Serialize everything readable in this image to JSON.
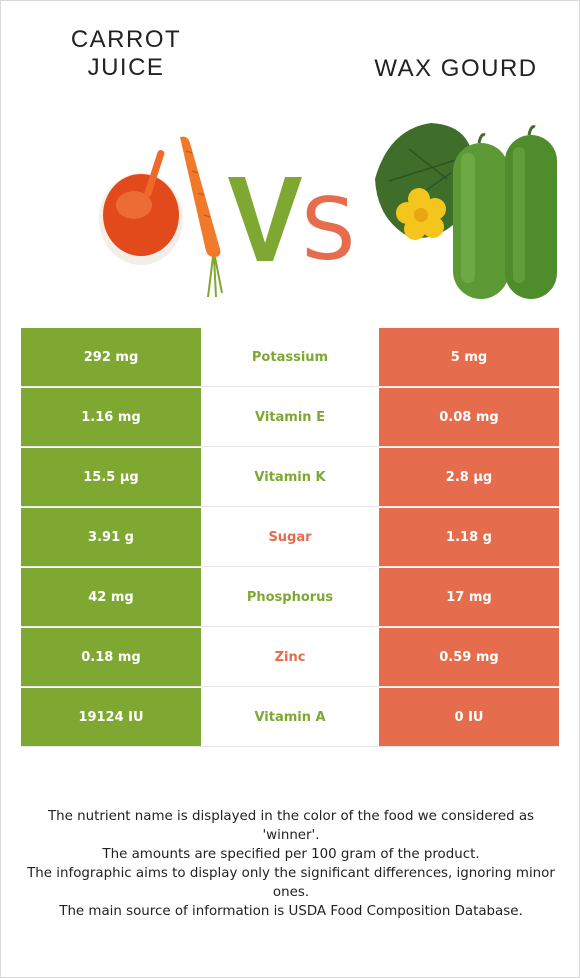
{
  "header": {
    "left_title_line1": "CARROT",
    "left_title_line2": "JUICE",
    "right_title": "WAX GOURD",
    "vs_text": "VS"
  },
  "colors": {
    "winner_left": "#7fa832",
    "winner_right": "#e56c4c",
    "text_dark": "#222222"
  },
  "illustrations": {
    "left": "carrot-juice-illustration",
    "right": "wax-gourd-illustration"
  },
  "nutrients": [
    {
      "left": "292 mg",
      "name": "Potassium",
      "right": "5 mg",
      "winner": "left"
    },
    {
      "left": "1.16 mg",
      "name": "Vitamin E",
      "right": "0.08 mg",
      "winner": "left"
    },
    {
      "left": "15.5 µg",
      "name": "Vitamin K",
      "right": "2.8 µg",
      "winner": "left"
    },
    {
      "left": "3.91 g",
      "name": "Sugar",
      "right": "1.18 g",
      "winner": "right"
    },
    {
      "left": "42 mg",
      "name": "Phosphorus",
      "right": "17 mg",
      "winner": "left"
    },
    {
      "left": "0.18 mg",
      "name": "Zinc",
      "right": "0.59 mg",
      "winner": "right"
    },
    {
      "left": "19124 IU",
      "name": "Vitamin A",
      "right": "0 IU",
      "winner": "left"
    }
  ],
  "footer": {
    "line1": "The nutrient name is displayed in the color of the food we considered as 'winner'.",
    "line2": "The amounts are specified per 100 gram of the product.",
    "line3": "The infographic aims to display only the significant differences, ignoring minor ones.",
    "line4": "The main source of information is USDA Food Composition Database."
  }
}
